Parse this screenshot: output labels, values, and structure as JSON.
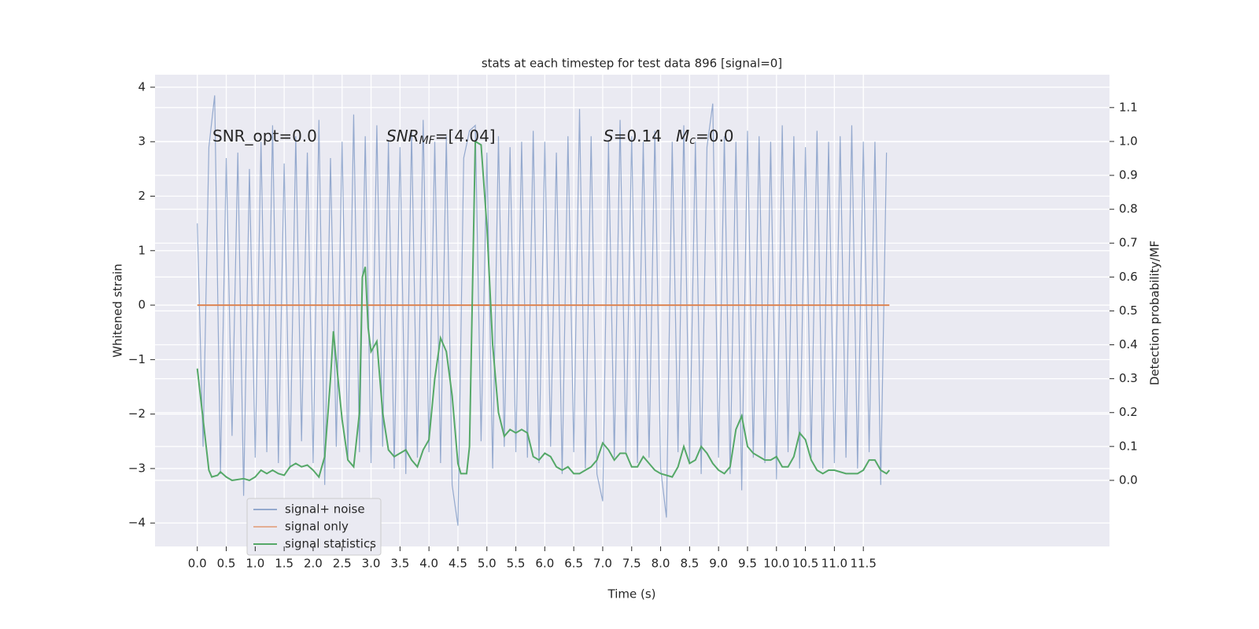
{
  "chart_data": {
    "type": "line",
    "title": "stats at each timestep for test data 896 [signal=0]",
    "x_label": "Time (s)",
    "y_label": "Whitened strain",
    "y2_label": "Detection probability/MF",
    "annotations": [
      [
        "SNR_opt=0.0"
      ],
      [
        "SNR",
        "MF",
        "=[4.04]"
      ],
      [
        "S",
        "=0.14"
      ],
      [
        "M",
        "c",
        "=0.0"
      ]
    ],
    "xlim": [
      -0.73,
      15.75
    ],
    "ylim": [
      -4.43,
      4.23
    ],
    "y2lim": [
      -0.195,
      1.197
    ],
    "xticks": [
      {
        "value": 0,
        "label": "0.0"
      },
      0.5,
      {
        "value": 1,
        "label": "1.0"
      },
      1.5,
      {
        "value": 2,
        "label": "2.0"
      },
      2.5,
      {
        "value": 3,
        "label": "3.0"
      },
      3.5,
      {
        "value": 4,
        "label": "4.0"
      },
      4.5,
      {
        "value": 5,
        "label": "5.0"
      },
      5.5,
      {
        "value": 6,
        "label": "6.0"
      },
      6.5,
      {
        "value": 7,
        "label": "7.0"
      },
      7.5,
      {
        "value": 8,
        "label": "8.0"
      },
      8.5,
      {
        "value": 9,
        "label": "9.0"
      },
      9.5,
      {
        "value": 10,
        "label": "10.0"
      },
      10.5,
      {
        "value": 11,
        "label": "11.0"
      },
      11.5
    ],
    "yticks": [
      {
        "value": -4,
        "label": "−4"
      },
      {
        "value": -3,
        "label": "−3"
      },
      {
        "value": -2,
        "label": "−2"
      },
      {
        "value": -1,
        "label": "−1"
      },
      0,
      1,
      2,
      3,
      4
    ],
    "y2ticks": [
      {
        "value": 0,
        "label": "0.0"
      },
      0.1,
      0.2,
      0.3,
      0.4,
      0.5,
      0.6,
      0.7,
      0.8,
      0.9,
      {
        "value": 1,
        "label": "1.0"
      },
      1.1
    ],
    "grid": true,
    "legend_loc": "lower left",
    "series": [
      {
        "name": "signal+ noise",
        "color": "#4c72b0",
        "x": [
          0.0,
          0.1,
          0.2,
          0.3,
          0.4,
          0.5,
          0.6,
          0.7,
          0.8,
          0.9,
          1.0,
          1.1,
          1.2,
          1.3,
          1.4,
          1.5,
          1.6,
          1.7,
          1.8,
          1.9,
          2.0,
          2.1,
          2.2,
          2.3,
          2.4,
          2.5,
          2.6,
          2.7,
          2.8,
          2.9,
          3.0,
          3.1,
          3.2,
          3.3,
          3.4,
          3.5,
          3.6,
          3.7,
          3.8,
          3.9,
          4.0,
          4.1,
          4.2,
          4.3,
          4.4,
          4.5,
          4.6,
          4.7,
          4.8,
          4.9,
          5.0,
          5.1,
          5.2,
          5.3,
          5.4,
          5.5,
          5.6,
          5.7,
          5.8,
          5.9,
          6.0,
          6.1,
          6.2,
          6.3,
          6.4,
          6.5,
          6.6,
          6.7,
          6.8,
          6.9,
          7.0,
          7.1,
          7.2,
          7.3,
          7.4,
          7.5,
          7.6,
          7.7,
          7.8,
          7.9,
          8.0,
          8.1,
          8.2,
          8.3,
          8.4,
          8.5,
          8.6,
          8.7,
          8.8,
          8.9,
          9.0,
          9.1,
          9.2,
          9.3,
          9.4,
          9.5,
          9.6,
          9.7,
          9.8,
          9.9,
          10.0,
          10.1,
          10.2,
          10.3,
          10.4,
          10.5,
          10.6,
          10.7,
          10.8,
          10.9,
          11.0,
          11.1,
          11.2,
          11.3,
          11.4,
          11.5,
          11.6,
          11.7,
          11.8,
          11.9
        ],
        "values": [
          1.5,
          -2.6,
          2.9,
          3.85,
          -3.1,
          2.7,
          -2.4,
          2.8,
          -3.5,
          2.5,
          -2.8,
          3.0,
          -2.7,
          3.3,
          -2.9,
          2.6,
          -3.0,
          3.1,
          -2.5,
          2.8,
          -2.9,
          3.4,
          -3.3,
          2.7,
          -2.6,
          3.0,
          -2.8,
          3.5,
          -2.7,
          3.1,
          -2.9,
          3.3,
          -2.6,
          3.0,
          -3.0,
          2.9,
          -3.1,
          3.2,
          -2.8,
          3.4,
          -2.7,
          3.0,
          -2.9,
          3.1,
          -3.3,
          -4.05,
          2.7,
          3.2,
          3.3,
          -2.5,
          2.8,
          -3.0,
          3.1,
          -2.6,
          2.9,
          -2.7,
          3.0,
          -2.8,
          3.2,
          -2.9,
          3.0,
          -2.6,
          2.8,
          -3.1,
          3.1,
          -2.7,
          3.6,
          -3.0,
          3.1,
          -3.1,
          -3.6,
          3.0,
          -2.8,
          3.4,
          -2.7,
          3.1,
          -2.9,
          3.0,
          -2.8,
          3.2,
          -3.0,
          -3.9,
          3.0,
          -2.7,
          3.3,
          -2.9,
          3.0,
          -3.1,
          2.9,
          3.7,
          -2.8,
          3.1,
          -3.1,
          3.0,
          -3.4,
          3.2,
          -2.8,
          3.1,
          -2.9,
          3.0,
          -3.2,
          3.3,
          -2.7,
          3.1,
          -3.0,
          2.9,
          -2.8,
          3.2,
          -3.0,
          3.0,
          -2.9,
          3.1,
          -2.8,
          3.3,
          -3.0,
          3.0,
          -2.7,
          3.0,
          -3.3,
          2.8
        ]
      },
      {
        "name": "signal only",
        "color": "#dd8452",
        "x": [
          0.0,
          11.95
        ],
        "values": [
          0,
          0
        ]
      },
      {
        "name": "signal statistics",
        "color": "#55a868",
        "axis": "y2",
        "x": [
          0.0,
          0.1,
          0.2,
          0.25,
          0.35,
          0.4,
          0.5,
          0.6,
          0.8,
          0.9,
          1.0,
          1.1,
          1.2,
          1.3,
          1.4,
          1.5,
          1.6,
          1.7,
          1.8,
          1.9,
          2.0,
          2.1,
          2.2,
          2.3,
          2.35,
          2.4,
          2.5,
          2.6,
          2.7,
          2.8,
          2.85,
          2.9,
          2.95,
          3.0,
          3.1,
          3.2,
          3.3,
          3.4,
          3.6,
          3.7,
          3.8,
          3.9,
          4.0,
          4.1,
          4.2,
          4.3,
          4.4,
          4.5,
          4.55,
          4.65,
          4.7,
          4.8,
          4.9,
          5.0,
          5.1,
          5.2,
          5.3,
          5.4,
          5.5,
          5.6,
          5.7,
          5.8,
          5.9,
          6.0,
          6.1,
          6.2,
          6.3,
          6.4,
          6.5,
          6.6,
          6.7,
          6.8,
          6.9,
          7.0,
          7.1,
          7.2,
          7.3,
          7.4,
          7.5,
          7.6,
          7.7,
          7.8,
          7.9,
          8.0,
          8.2,
          8.3,
          8.4,
          8.5,
          8.6,
          8.7,
          8.8,
          8.9,
          9.0,
          9.1,
          9.2,
          9.3,
          9.4,
          9.5,
          9.6,
          9.7,
          9.8,
          9.9,
          10.0,
          10.1,
          10.2,
          10.3,
          10.4,
          10.5,
          10.6,
          10.7,
          10.8,
          10.9,
          11.0,
          11.2,
          11.4,
          11.5,
          11.6,
          11.7,
          11.8,
          11.9,
          11.95
        ],
        "values": [
          0.33,
          0.18,
          0.03,
          0.01,
          0.015,
          0.025,
          0.01,
          0.0,
          0.005,
          0.0,
          0.01,
          0.03,
          0.02,
          0.03,
          0.02,
          0.015,
          0.04,
          0.05,
          0.04,
          0.045,
          0.03,
          0.01,
          0.07,
          0.3,
          0.44,
          0.35,
          0.18,
          0.06,
          0.04,
          0.2,
          0.6,
          0.63,
          0.45,
          0.38,
          0.41,
          0.2,
          0.09,
          0.07,
          0.09,
          0.06,
          0.04,
          0.09,
          0.12,
          0.3,
          0.42,
          0.38,
          0.25,
          0.05,
          0.02,
          0.02,
          0.1,
          1.0,
          0.99,
          0.75,
          0.4,
          0.2,
          0.13,
          0.15,
          0.14,
          0.15,
          0.14,
          0.07,
          0.06,
          0.08,
          0.07,
          0.04,
          0.03,
          0.04,
          0.02,
          0.02,
          0.03,
          0.04,
          0.06,
          0.11,
          0.09,
          0.06,
          0.08,
          0.08,
          0.04,
          0.04,
          0.07,
          0.05,
          0.03,
          0.02,
          0.01,
          0.04,
          0.1,
          0.05,
          0.06,
          0.1,
          0.08,
          0.05,
          0.03,
          0.02,
          0.04,
          0.15,
          0.19,
          0.1,
          0.08,
          0.07,
          0.06,
          0.06,
          0.07,
          0.04,
          0.04,
          0.07,
          0.14,
          0.12,
          0.06,
          0.03,
          0.02,
          0.03,
          0.03,
          0.02,
          0.02,
          0.03,
          0.06,
          0.06,
          0.03,
          0.02,
          0.03
        ]
      }
    ]
  }
}
